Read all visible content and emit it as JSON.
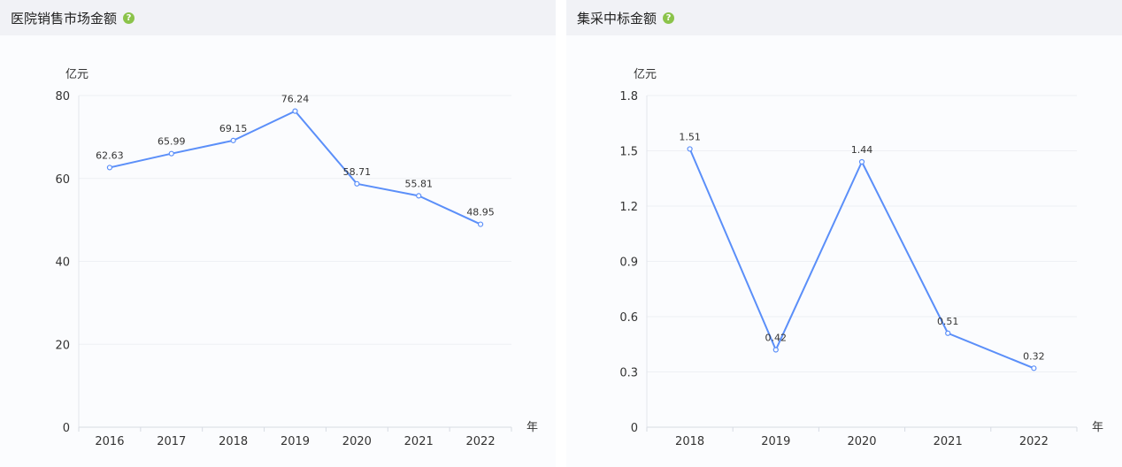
{
  "panels": [
    {
      "title": "医院销售市场金额",
      "help_icon": "help-icon",
      "chart_data": {
        "type": "line",
        "categories": [
          "2016",
          "2017",
          "2018",
          "2019",
          "2020",
          "2021",
          "2022"
        ],
        "values": [
          62.63,
          65.99,
          69.15,
          76.24,
          58.71,
          55.81,
          48.95
        ],
        "value_labels": [
          "62.63",
          "65.99",
          "69.15",
          "76.24",
          "58.71",
          "55.81",
          "48.95"
        ],
        "ylabel": "亿元",
        "xlabel": "年",
        "ylim": [
          0,
          80
        ],
        "yticks": [
          0,
          20,
          40,
          60,
          80
        ],
        "ytick_labels": [
          "0",
          "20",
          "40",
          "60",
          "80"
        ],
        "grid": true,
        "line_color": "#5b8ff9"
      }
    },
    {
      "title": "集采中标金额",
      "help_icon": "help-icon",
      "chart_data": {
        "type": "line",
        "categories": [
          "2018",
          "2019",
          "2020",
          "2021",
          "2022"
        ],
        "values": [
          1.51,
          0.42,
          1.44,
          0.51,
          0.32
        ],
        "value_labels": [
          "1.51",
          "0.42",
          "1.44",
          "0.51",
          "0.32"
        ],
        "ylabel": "亿元",
        "xlabel": "年",
        "ylim": [
          0,
          1.8
        ],
        "yticks": [
          0,
          0.3,
          0.6,
          0.9,
          1.2,
          1.5,
          1.8
        ],
        "ytick_labels": [
          "0",
          "0.3",
          "0.6",
          "0.9",
          "1.2",
          "1.5",
          "1.8"
        ],
        "grid": true,
        "line_color": "#5b8ff9"
      }
    }
  ]
}
